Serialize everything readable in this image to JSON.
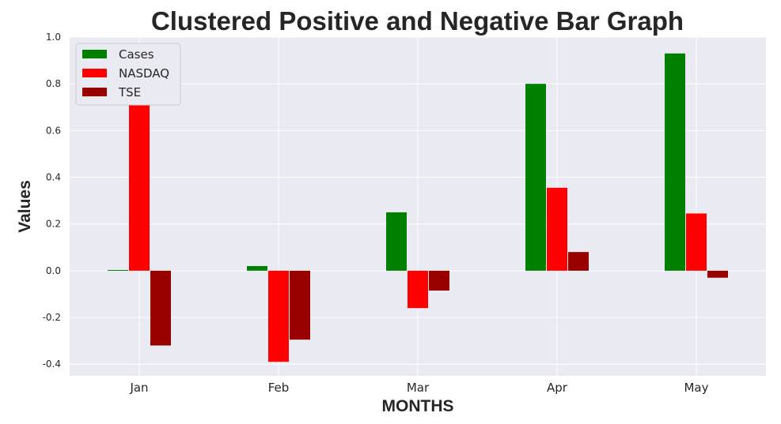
{
  "chart_data": {
    "type": "bar",
    "title": "Clustered Positive and Negative Bar Graph",
    "xlabel": "MONTHS",
    "ylabel": "Values",
    "categories": [
      "Jan",
      "Feb",
      "Mar",
      "Apr",
      "May"
    ],
    "series": [
      {
        "name": "Cases",
        "color": "#008000",
        "values": [
          0.003,
          0.02,
          0.25,
          0.8,
          0.93
        ]
      },
      {
        "name": "NASDAQ",
        "color": "#ff0000",
        "values": [
          0.74,
          -0.39,
          -0.16,
          0.355,
          0.245
        ]
      },
      {
        "name": "TSE",
        "color": "#990000",
        "values": [
          -0.32,
          -0.295,
          -0.085,
          0.08,
          -0.03
        ]
      }
    ],
    "ylim": [
      -0.45,
      1.0
    ],
    "yticks": [
      -0.4,
      -0.2,
      0.0,
      0.2,
      0.4,
      0.6,
      0.8,
      1.0
    ],
    "ytick_labels": [
      "-0.4",
      "-0.2",
      "0.0",
      "0.2",
      "0.4",
      "0.6",
      "0.8",
      "1.0"
    ],
    "grid": true,
    "legend_position": "top-left",
    "background_color": "#eaeaf2"
  }
}
